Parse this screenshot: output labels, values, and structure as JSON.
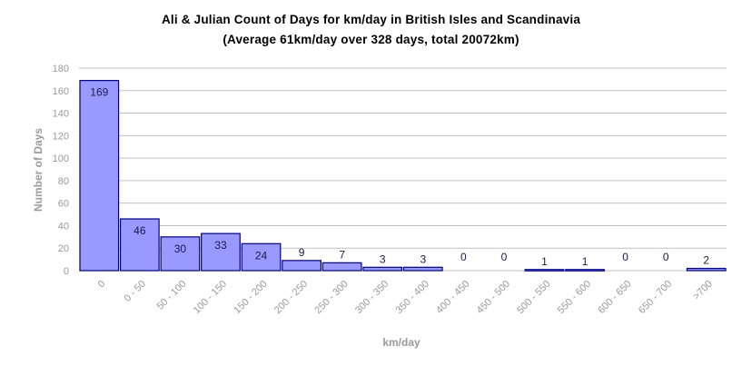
{
  "chart_data": {
    "type": "bar",
    "title": "Ali & Julian Count of Days for km/day in British Isles and Scandinavia",
    "subtitle": "(Average 61km/day over 328 days, total 20072km)",
    "xlabel": "km/day",
    "ylabel": "Number of Days",
    "categories": [
      "0",
      "0 - 50",
      "50 - 100",
      "100 - 150",
      "150 - 200",
      "200 - 250",
      "250 - 300",
      "300 - 350",
      "350 - 400",
      "400 - 450",
      "450 - 500",
      "500 - 550",
      "550 - 600",
      "600 - 650",
      "650 - 700",
      ">700"
    ],
    "values": [
      169,
      46,
      30,
      33,
      24,
      9,
      7,
      3,
      3,
      0,
      0,
      1,
      1,
      0,
      0,
      2
    ],
    "ylim": [
      0,
      180
    ],
    "yticks": [
      0,
      20,
      40,
      60,
      80,
      100,
      120,
      140,
      160,
      180
    ],
    "grid": true,
    "legend": "none",
    "colors": {
      "bar_fill": "#9999ff",
      "bar_stroke": "#000080",
      "grid": "#c0c0c0",
      "tick_text": "#9a9a9a"
    }
  }
}
